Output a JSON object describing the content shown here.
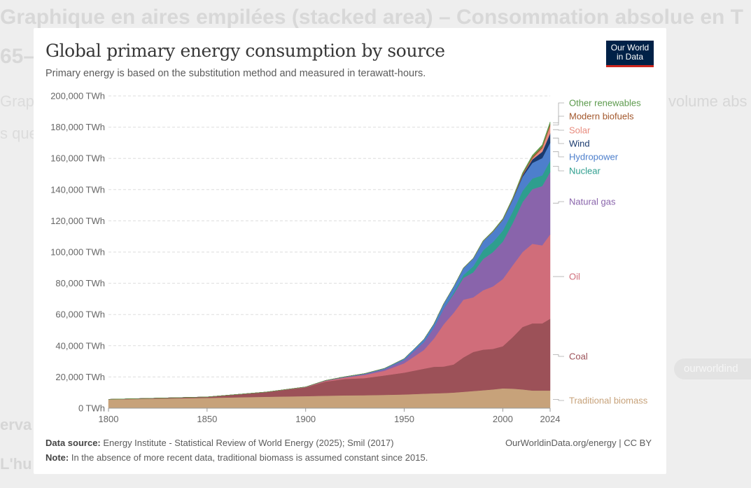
{
  "background": {
    "heading": "Graphique en aires empilées (stacked area) – Consommation absolue en T",
    "subheading": "65–",
    "text_left": "Graph",
    "text_left2": "s que",
    "text_right": "volume abs",
    "footer_left1": "erva",
    "footer_left2": "L'hu",
    "pill": "ourworldind"
  },
  "card": {
    "title": "Global primary energy consumption by source",
    "subtitle": "Primary energy is based on the substitution method and measured in terawatt-hours.",
    "logo_line1": "Our World",
    "logo_line2": "in Data",
    "source_label": "Data source:",
    "source_text": "Energy Institute - Statistical Review of World Energy (2025); Smil (2017)",
    "note_label": "Note:",
    "note_text": "In the absence of more recent data, traditional biomass is assumed constant since 2015.",
    "credit": "OurWorldinData.org/energy | CC BY"
  },
  "colors": {
    "Traditional biomass": "#c7a27a",
    "Coal": "#9c5158",
    "Oil": "#d06d7a",
    "Natural gas": "#8964ab",
    "Nuclear": "#2e9e8e",
    "Hydropower": "#4d7fcc",
    "Wind": "#1a3a6e",
    "Solar": "#e88b7e",
    "Modern biofuels": "#a3582d",
    "Other renewables": "#5c9a4c"
  },
  "chart_data": {
    "type": "area",
    "stacked": true,
    "y_unit": "TWh",
    "ylim": [
      0,
      200000
    ],
    "xlim": [
      1800,
      2024
    ],
    "y_ticks": [
      0,
      20000,
      40000,
      60000,
      80000,
      100000,
      120000,
      140000,
      160000,
      180000,
      200000
    ],
    "y_tick_labels": [
      "0 TWh",
      "20,000 TWh",
      "40,000 TWh",
      "60,000 TWh",
      "80,000 TWh",
      "100,000 TWh",
      "120,000 TWh",
      "140,000 TWh",
      "160,000 TWh",
      "180,000 TWh",
      "200,000 TWh"
    ],
    "x_ticks": [
      1800,
      1850,
      1900,
      1950,
      2000,
      2024
    ],
    "x_tick_labels": [
      "1800",
      "1850",
      "1900",
      "1950",
      "2000",
      "2024"
    ],
    "grid": "horizontal dashed",
    "legend": "right, inline labels",
    "x": [
      1800,
      1850,
      1880,
      1900,
      1910,
      1920,
      1930,
      1940,
      1950,
      1960,
      1965,
      1970,
      1975,
      1980,
      1985,
      1990,
      1995,
      2000,
      2005,
      2010,
      2015,
      2020,
      2024
    ],
    "series": [
      {
        "name": "Traditional biomass",
        "values": [
          5600,
          6600,
          7300,
          7700,
          8000,
          8200,
          8300,
          8500,
          8800,
          9300,
          9500,
          9700,
          10000,
          10500,
          11000,
          11500,
          12000,
          12700,
          12500,
          12000,
          11300,
          11300,
          11300
        ]
      },
      {
        "name": "Coal",
        "values": [
          100,
          600,
          3000,
          5600,
          9000,
          10500,
          11000,
          12500,
          14000,
          16000,
          17000,
          17000,
          18000,
          22000,
          25000,
          26000,
          26000,
          27000,
          33000,
          40000,
          43000,
          43000,
          46000
        ]
      },
      {
        "name": "Oil",
        "values": [
          0,
          0,
          50,
          200,
          500,
          1000,
          2000,
          3000,
          6000,
          12000,
          18000,
          27000,
          33000,
          37000,
          35000,
          38000,
          40000,
          43000,
          46000,
          48000,
          51000,
          50000,
          54000
        ]
      },
      {
        "name": "Natural gas",
        "values": [
          0,
          0,
          10,
          100,
          200,
          300,
          600,
          1000,
          2000,
          5000,
          7000,
          10000,
          12000,
          14000,
          16000,
          20000,
          22000,
          24000,
          27000,
          32000,
          35000,
          38000,
          40000
        ]
      },
      {
        "name": "Nuclear",
        "values": [
          0,
          0,
          0,
          0,
          0,
          0,
          0,
          0,
          0,
          10,
          70,
          200,
          1000,
          1800,
          3800,
          5600,
          6400,
          7000,
          7400,
          7200,
          6800,
          6800,
          7200
        ]
      },
      {
        "name": "Hydropower",
        "values": [
          0,
          0,
          0,
          10,
          80,
          200,
          300,
          500,
          900,
          1800,
          2300,
          3000,
          3700,
          4400,
          5000,
          5800,
          6600,
          6900,
          7600,
          9000,
          10000,
          11100,
          11500
        ]
      },
      {
        "name": "Wind",
        "values": [
          0,
          0,
          0,
          0,
          0,
          0,
          0,
          0,
          0,
          0,
          0,
          0,
          0,
          0,
          0,
          0,
          10,
          90,
          300,
          900,
          2200,
          4000,
          6000
        ]
      },
      {
        "name": "Solar",
        "values": [
          0,
          0,
          0,
          0,
          0,
          0,
          0,
          0,
          0,
          0,
          0,
          0,
          0,
          0,
          0,
          0,
          0,
          5,
          15,
          100,
          700,
          2300,
          4800
        ]
      },
      {
        "name": "Modern biofuels",
        "values": [
          0,
          0,
          0,
          0,
          0,
          0,
          0,
          0,
          0,
          0,
          0,
          0,
          0,
          50,
          100,
          150,
          200,
          250,
          400,
          800,
          1000,
          1050,
          1200
        ]
      },
      {
        "name": "Other renewables",
        "values": [
          0,
          0,
          0,
          0,
          0,
          0,
          0,
          0,
          0,
          10,
          20,
          40,
          80,
          150,
          200,
          300,
          400,
          500,
          550,
          800,
          1000,
          1200,
          1400
        ]
      }
    ]
  }
}
